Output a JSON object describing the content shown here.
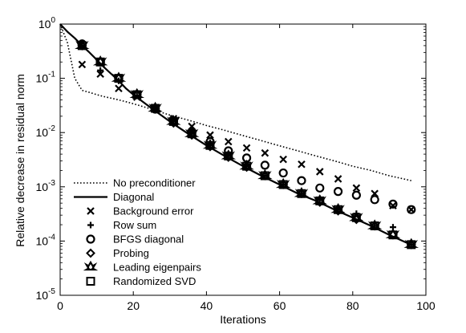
{
  "chart_data": {
    "type": "line",
    "title": "",
    "xlabel": "Iterations",
    "ylabel": "Relative decrease in residual norm",
    "xlim": [
      0,
      100
    ],
    "ylim": [
      1e-05,
      1
    ],
    "yscale": "log",
    "grid": false,
    "legend_position": "bottom-left",
    "xticks": [
      0,
      20,
      40,
      60,
      80,
      100
    ],
    "xtick_labels": [
      "0",
      "20",
      "40",
      "60",
      "80",
      "100"
    ],
    "yticks": [
      1,
      0.1,
      0.01,
      0.001,
      0.0001,
      1e-05
    ],
    "ytick_labels": [
      {
        "base": "10",
        "exp": "0"
      },
      {
        "base": "10",
        "exp": "-1"
      },
      {
        "base": "10",
        "exp": "-2"
      },
      {
        "base": "10",
        "exp": "-3"
      },
      {
        "base": "10",
        "exp": "-4"
      },
      {
        "base": "10",
        "exp": "-5"
      }
    ],
    "series": [
      {
        "name": "No preconditioner",
        "style": "dotted-line",
        "color": "#000000",
        "x": [
          0,
          2,
          4,
          6,
          8,
          10,
          12,
          14,
          16,
          18,
          20,
          25,
          30,
          35,
          40,
          45,
          50,
          55,
          60,
          65,
          70,
          75,
          80,
          85,
          90,
          96
        ],
        "y": [
          1.0,
          0.45,
          0.1,
          0.06,
          0.055,
          0.05,
          0.046,
          0.043,
          0.04,
          0.037,
          0.034,
          0.027,
          0.021,
          0.017,
          0.0135,
          0.011,
          0.0088,
          0.0071,
          0.0057,
          0.0046,
          0.0037,
          0.003,
          0.0024,
          0.002,
          0.0016,
          0.0013
        ]
      },
      {
        "name": "Diagonal",
        "style": "solid-line",
        "color": "#000000",
        "x": [
          0,
          2,
          4,
          6,
          8,
          10,
          12,
          14,
          16,
          18,
          20,
          25,
          30,
          35,
          40,
          45,
          50,
          55,
          60,
          65,
          70,
          75,
          80,
          85,
          90,
          96
        ],
        "y": [
          1.0,
          0.72,
          0.55,
          0.4,
          0.3,
          0.22,
          0.16,
          0.12,
          0.09,
          0.065,
          0.05,
          0.028,
          0.016,
          0.0095,
          0.0058,
          0.0037,
          0.0024,
          0.0016,
          0.0011,
          0.00075,
          0.00055,
          0.00038,
          0.00027,
          0.00019,
          0.00013,
          8.5e-05
        ]
      },
      {
        "name": "Background error",
        "style": "marker-x",
        "color": "#000000",
        "x": [
          6,
          11,
          16,
          21,
          26,
          31,
          36,
          41,
          46,
          51,
          56,
          61,
          66,
          71,
          76,
          81,
          86,
          91,
          96
        ],
        "y": [
          0.18,
          0.12,
          0.065,
          0.045,
          0.028,
          0.018,
          0.013,
          0.009,
          0.0068,
          0.0052,
          0.0042,
          0.0032,
          0.0026,
          0.0019,
          0.0014,
          0.00095,
          0.00075,
          0.00045,
          0.00038
        ]
      },
      {
        "name": "Row sum",
        "style": "marker-plus",
        "color": "#000000",
        "x": [
          6,
          11,
          16,
          21,
          26,
          31,
          36,
          41,
          46,
          51,
          56,
          61,
          66,
          71,
          76,
          81,
          86,
          91,
          96
        ],
        "y": [
          0.4,
          0.14,
          0.09,
          0.048,
          0.028,
          0.016,
          0.0095,
          0.0058,
          0.0037,
          0.0024,
          0.0016,
          0.0011,
          0.00075,
          0.0006,
          0.00038,
          0.00032,
          0.00019,
          0.00018,
          8.6e-05
        ]
      },
      {
        "name": "BFGS diagonal",
        "style": "marker-circle",
        "color": "#000000",
        "x": [
          6,
          11,
          16,
          21,
          26,
          31,
          36,
          41,
          46,
          51,
          56,
          61,
          66,
          71,
          76,
          81,
          86,
          91,
          96
        ],
        "y": [
          0.43,
          0.2,
          0.1,
          0.05,
          0.027,
          0.016,
          0.01,
          0.0068,
          0.0046,
          0.0034,
          0.0025,
          0.0018,
          0.0013,
          0.00095,
          0.00082,
          0.0007,
          0.00058,
          0.00048,
          0.00038
        ]
      },
      {
        "name": "Probing",
        "style": "marker-diamond",
        "color": "#000000",
        "x": [
          6,
          11,
          16,
          21,
          26,
          31,
          36,
          41,
          46,
          51,
          56,
          61,
          66,
          71,
          76,
          81,
          86,
          91,
          96
        ],
        "y": [
          0.4,
          0.2,
          0.1,
          0.05,
          0.028,
          0.015,
          0.009,
          0.0055,
          0.0035,
          0.0023,
          0.0016,
          0.0011,
          0.00075,
          0.00052,
          0.00036,
          0.00025,
          0.00019,
          0.00013,
          8.6e-05
        ]
      },
      {
        "name": "Leading eigenpairs",
        "style": "marker-star",
        "color": "#000000",
        "x": [
          6,
          11,
          16,
          21,
          26,
          31,
          36,
          41,
          46,
          51,
          56,
          61,
          66,
          71,
          76,
          81,
          86,
          91,
          96
        ],
        "y": [
          0.4,
          0.2,
          0.1,
          0.05,
          0.028,
          0.016,
          0.0095,
          0.0058,
          0.0037,
          0.0024,
          0.0016,
          0.0011,
          0.00075,
          0.00055,
          0.00038,
          0.00027,
          0.00019,
          0.00013,
          8.6e-05
        ]
      },
      {
        "name": "Randomized SVD",
        "style": "marker-square",
        "color": "#000000",
        "x": [
          6,
          11,
          16,
          21,
          26,
          31,
          36,
          41,
          46,
          51,
          56,
          61,
          66,
          71,
          76,
          81,
          86,
          91,
          96
        ],
        "y": [
          0.4,
          0.2,
          0.1,
          0.05,
          0.028,
          0.016,
          0.0095,
          0.0058,
          0.0037,
          0.0024,
          0.0016,
          0.0011,
          0.00075,
          0.00055,
          0.00038,
          0.00027,
          0.00019,
          0.00013,
          8.6e-05
        ]
      }
    ],
    "legend": [
      {
        "label": "No preconditioner",
        "style": "dotted-line"
      },
      {
        "label": "Diagonal",
        "style": "solid-line"
      },
      {
        "label": "Background error",
        "style": "marker-x"
      },
      {
        "label": "Row sum",
        "style": "marker-plus"
      },
      {
        "label": "BFGS diagonal",
        "style": "marker-circle"
      },
      {
        "label": "Probing",
        "style": "marker-diamond"
      },
      {
        "label": "Leading eigenpairs",
        "style": "marker-star"
      },
      {
        "label": "Randomized SVD",
        "style": "marker-square"
      }
    ]
  }
}
